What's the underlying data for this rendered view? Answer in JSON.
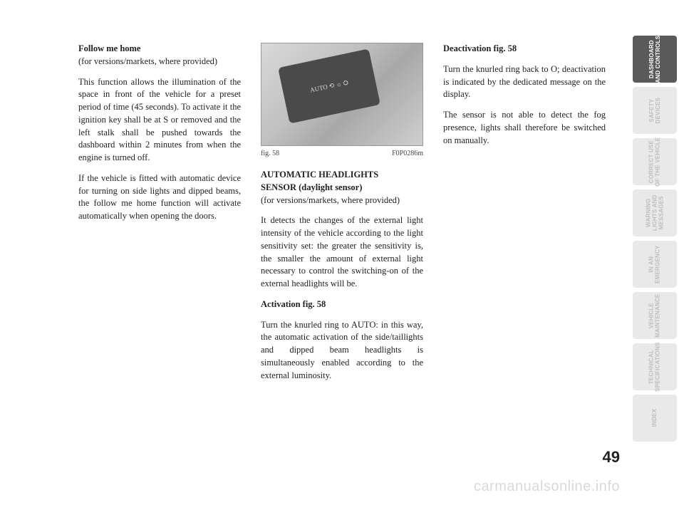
{
  "page_number": "49",
  "watermark": "carmanualsonline.info",
  "col1": {
    "h1": "Follow me home",
    "h1_sub": "(for versions/markets, where provided)",
    "p1": "This function allows the illumination of the space in front of the vehicle for a preset period of time (45 seconds). To activate it the ignition key shall be at S or removed and the left stalk shall be pushed towards the dashboard within 2 minutes from when the engine is turned off.",
    "p2": "If the vehicle is fitted with automatic device for turning on side lights and dipped beams, the follow me home function will activate automatically when opening the doors."
  },
  "col2": {
    "fig_label": "fig. 58",
    "fig_code": "F0P0286m",
    "fig_overlay": "AUTO ⟲ ☼ ⛭",
    "h2a": "AUTOMATIC HEADLIGHTS",
    "h2b": "SENSOR (daylight sensor)",
    "h2_sub": "(for versions/markets, where provided)",
    "p1": "It detects the changes of the external light intensity of the vehicle according to the light sensitivity set: the greater the sensitivity is, the smaller the amount of external light necessary to control the switching-on of the external headlights will be.",
    "h3": "Activation fig. 58",
    "p2": "Turn the knurled ring to AUTO: in this way, the automatic activation of the side/taillights and dipped beam headlights is simultaneously enabled according to the external luminosity."
  },
  "col3": {
    "h1": "Deactivation fig. 58",
    "p1": "Turn the knurled ring back to O; deactivation is indicated by the dedicated message on the display.",
    "p2": "The sensor is not able to detect the fog presence, lights shall therefore be switched on manually."
  },
  "tabs": [
    {
      "label": "DASHBOARD\nAND CONTROLS",
      "active": true
    },
    {
      "label": "SAFETY\nDEVICES",
      "active": false
    },
    {
      "label": "CORRECT USE\nOF THE VEHICLE",
      "active": false
    },
    {
      "label": "WARNING\nLIGHTS AND\nMESSAGES",
      "active": false
    },
    {
      "label": "IN AN\nEMERGENCY",
      "active": false
    },
    {
      "label": "VEHICLE\nMAINTENANCE",
      "active": false
    },
    {
      "label": "TECHNICAL\nSPECIFICATIONS",
      "active": false
    },
    {
      "label": "INDEX",
      "active": false
    }
  ]
}
